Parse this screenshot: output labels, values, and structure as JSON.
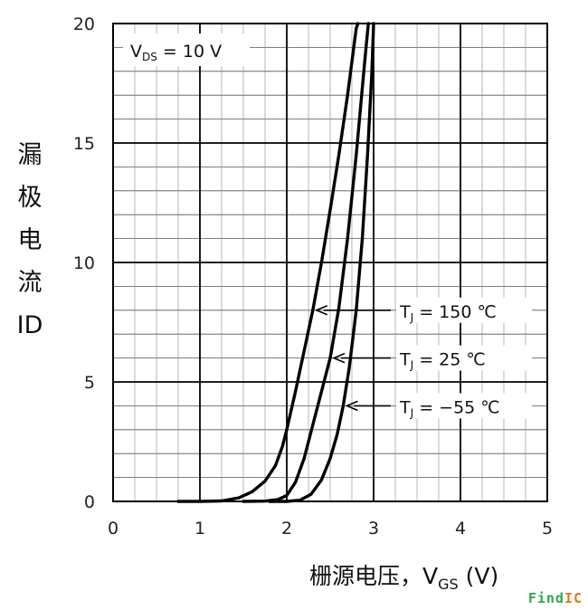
{
  "chart_data": {
    "type": "line",
    "xlabel": "栅源电压，V",
    "xlabel_sub": "GS",
    "xlabel_unit": " (V)",
    "ylabel": [
      "漏",
      "极",
      "电",
      "流",
      "ID"
    ],
    "xlim": [
      0,
      5
    ],
    "ylim": [
      0,
      20
    ],
    "x_ticks": [
      0,
      1,
      2,
      3,
      4,
      5
    ],
    "y_ticks": [
      0,
      5,
      10,
      15,
      20
    ],
    "x_minor_step": 0.25,
    "y_minor_step": 1,
    "grid": true,
    "condition": {
      "label": "V",
      "sub": "DS",
      "value": " = 10 V"
    },
    "series": [
      {
        "name": "Tj = 150 ℃",
        "name_parts": {
          "main": "T",
          "sub": "J",
          "value": " = 150 ℃"
        },
        "arrow_at": {
          "x": 2.3,
          "y": 8
        },
        "points": [
          [
            0.75,
            0
          ],
          [
            1.0,
            0
          ],
          [
            1.25,
            0.02
          ],
          [
            1.45,
            0.15
          ],
          [
            1.6,
            0.4
          ],
          [
            1.75,
            0.85
          ],
          [
            1.87,
            1.5
          ],
          [
            1.95,
            2.3
          ],
          [
            2.0,
            3.0
          ],
          [
            2.1,
            4.6
          ],
          [
            2.2,
            6.3
          ],
          [
            2.3,
            8.0
          ],
          [
            2.4,
            10.0
          ],
          [
            2.5,
            12.2
          ],
          [
            2.6,
            14.5
          ],
          [
            2.7,
            17.0
          ],
          [
            2.8,
            19.8
          ],
          [
            2.82,
            20
          ]
        ]
      },
      {
        "name": "Tj = 25 ℃",
        "name_parts": {
          "main": "T",
          "sub": "J",
          "value": " = 25 ℃"
        },
        "arrow_at": {
          "x": 2.5,
          "y": 6
        },
        "points": [
          [
            1.5,
            0
          ],
          [
            1.75,
            0.01
          ],
          [
            1.9,
            0.08
          ],
          [
            2.0,
            0.25
          ],
          [
            2.1,
            0.8
          ],
          [
            2.2,
            1.8
          ],
          [
            2.3,
            3.2
          ],
          [
            2.4,
            4.6
          ],
          [
            2.5,
            6.0
          ],
          [
            2.6,
            8.1
          ],
          [
            2.7,
            11.0
          ],
          [
            2.8,
            14.5
          ],
          [
            2.9,
            18.5
          ],
          [
            2.94,
            20
          ]
        ]
      },
      {
        "name": "Tj = −55 ℃",
        "name_parts": {
          "main": "T",
          "sub": "J",
          "value": " = −55 ℃"
        },
        "arrow_at": {
          "x": 2.65,
          "y": 4
        },
        "points": [
          [
            1.8,
            0
          ],
          [
            2.0,
            0
          ],
          [
            2.15,
            0.05
          ],
          [
            2.28,
            0.3
          ],
          [
            2.4,
            0.9
          ],
          [
            2.5,
            1.8
          ],
          [
            2.58,
            2.8
          ],
          [
            2.65,
            4.0
          ],
          [
            2.72,
            5.6
          ],
          [
            2.8,
            8.0
          ],
          [
            2.87,
            11.0
          ],
          [
            2.93,
            14.5
          ],
          [
            2.98,
            18.0
          ],
          [
            3.0,
            20
          ]
        ]
      }
    ]
  },
  "watermark": {
    "part_a": "Find",
    "part_b": "IC"
  }
}
